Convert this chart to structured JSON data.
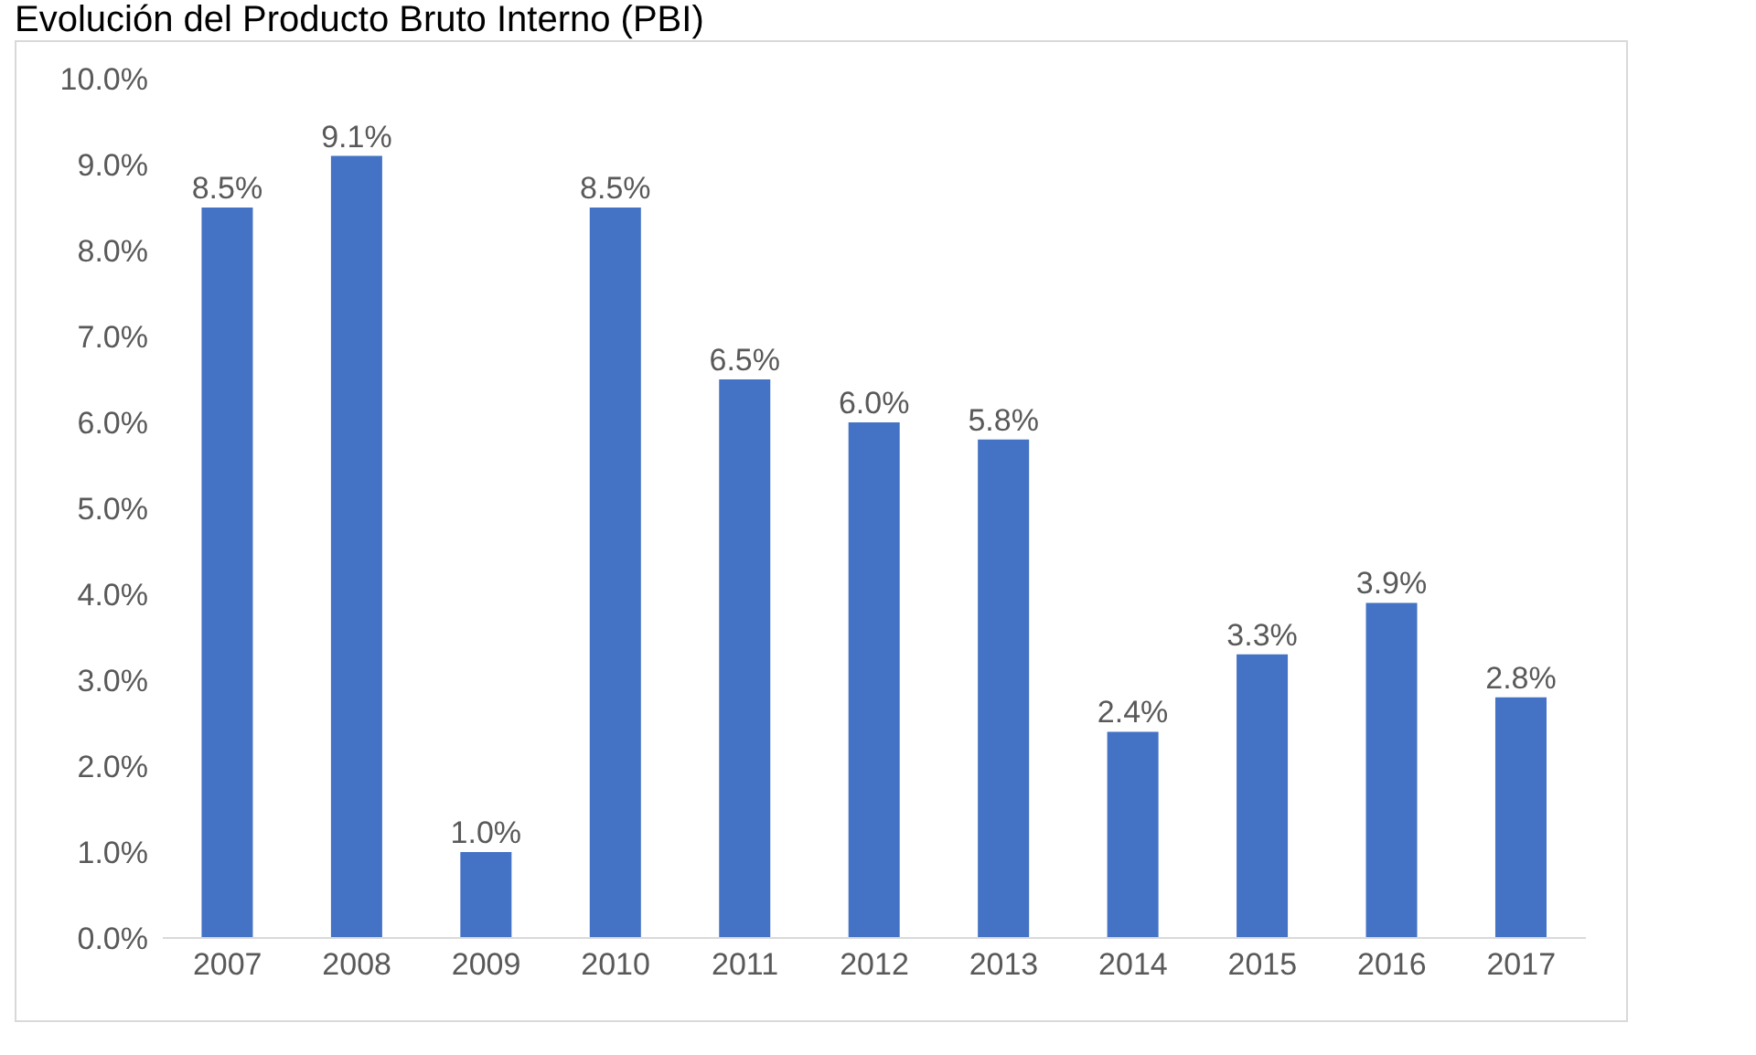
{
  "chart_data": {
    "type": "bar",
    "title": "Evolución del Producto Bruto Interno (PBI)",
    "categories": [
      "2007",
      "2008",
      "2009",
      "2010",
      "2011",
      "2012",
      "2013",
      "2014",
      "2015",
      "2016",
      "2017"
    ],
    "values": [
      8.5,
      9.1,
      1.0,
      8.5,
      6.5,
      6.0,
      5.8,
      2.4,
      3.3,
      3.9,
      2.8
    ],
    "color": "#4472c4",
    "ylim": [
      0,
      10
    ],
    "yticks": [
      {
        "value": 0,
        "label": "0.0%"
      },
      {
        "value": 1,
        "label": "1.0%"
      },
      {
        "value": 2,
        "label": "2.0%"
      },
      {
        "value": 3,
        "label": "3.0%"
      },
      {
        "value": 4,
        "label": "4.0%"
      },
      {
        "value": 5,
        "label": "5.0%"
      },
      {
        "value": 6,
        "label": "6.0%"
      },
      {
        "value": 7,
        "label": "7.0%"
      },
      {
        "value": 8,
        "label": "8.0%"
      },
      {
        "value": 9,
        "label": "9.0%"
      },
      {
        "value": 10,
        "label": "10.0%"
      }
    ],
    "value_labels": [
      "8.5%",
      "9.1%",
      "1.0%",
      "8.5%",
      "6.5%",
      "6.0%",
      "5.8%",
      "2.4%",
      "3.3%",
      "3.9%",
      "2.8%"
    ]
  }
}
